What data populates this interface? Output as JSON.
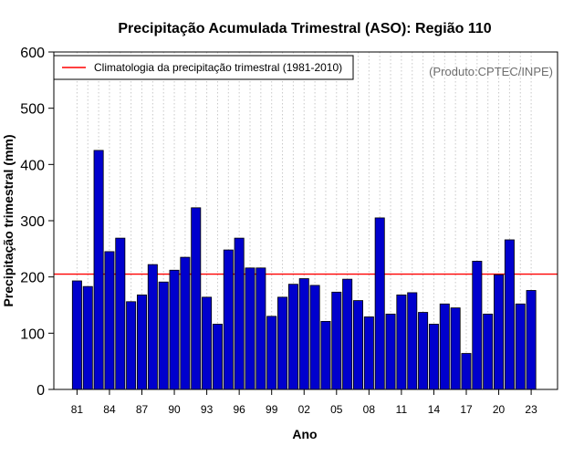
{
  "chart_data": {
    "type": "bar",
    "title": "Precipitação Acumulada Trimestral (ASO): Região 110",
    "xlabel": "Ano",
    "ylabel": "Precipitação trimestral (mm)",
    "ylim": [
      0,
      600
    ],
    "yticks": [
      "0",
      "100",
      "200",
      "300",
      "400",
      "500",
      "600"
    ],
    "ytick_values": [
      0,
      100,
      200,
      300,
      400,
      500,
      600
    ],
    "xtick_labels": [
      "81",
      "84",
      "87",
      "90",
      "93",
      "96",
      "99",
      "02",
      "05",
      "08",
      "11",
      "14",
      "17",
      "20",
      "23"
    ],
    "xtick_years": [
      1981,
      1984,
      1987,
      1990,
      1993,
      1996,
      1999,
      2002,
      2005,
      2008,
      2011,
      2014,
      2017,
      2020,
      2023
    ],
    "years": [
      1981,
      1982,
      1983,
      1984,
      1985,
      1986,
      1987,
      1988,
      1989,
      1990,
      1991,
      1992,
      1993,
      1994,
      1995,
      1996,
      1997,
      1998,
      1999,
      2000,
      2001,
      2002,
      2003,
      2004,
      2005,
      2006,
      2007,
      2008,
      2009,
      2010,
      2011,
      2012,
      2013,
      2014,
      2015,
      2016,
      2017,
      2018,
      2019,
      2020,
      2021,
      2022,
      2023
    ],
    "values": [
      193,
      183,
      425,
      245,
      269,
      156,
      168,
      222,
      191,
      212,
      235,
      323,
      164,
      116,
      248,
      269,
      216,
      216,
      130,
      164,
      187,
      197,
      185,
      121,
      173,
      196,
      158,
      129,
      305,
      134,
      168,
      172,
      137,
      116,
      152,
      145,
      64,
      228,
      134,
      204,
      266,
      152,
      176
    ],
    "climatology": 205,
    "climatology_color": "#ff0000",
    "bar_color": "#0000cd",
    "legend": {
      "entries": [
        "Climatologia da precipitação trimestral (1981-2010)"
      ],
      "placement": "top-left"
    },
    "grid": "vertical dotted",
    "annotation": "(Produto:CPTEC/INPE)"
  }
}
